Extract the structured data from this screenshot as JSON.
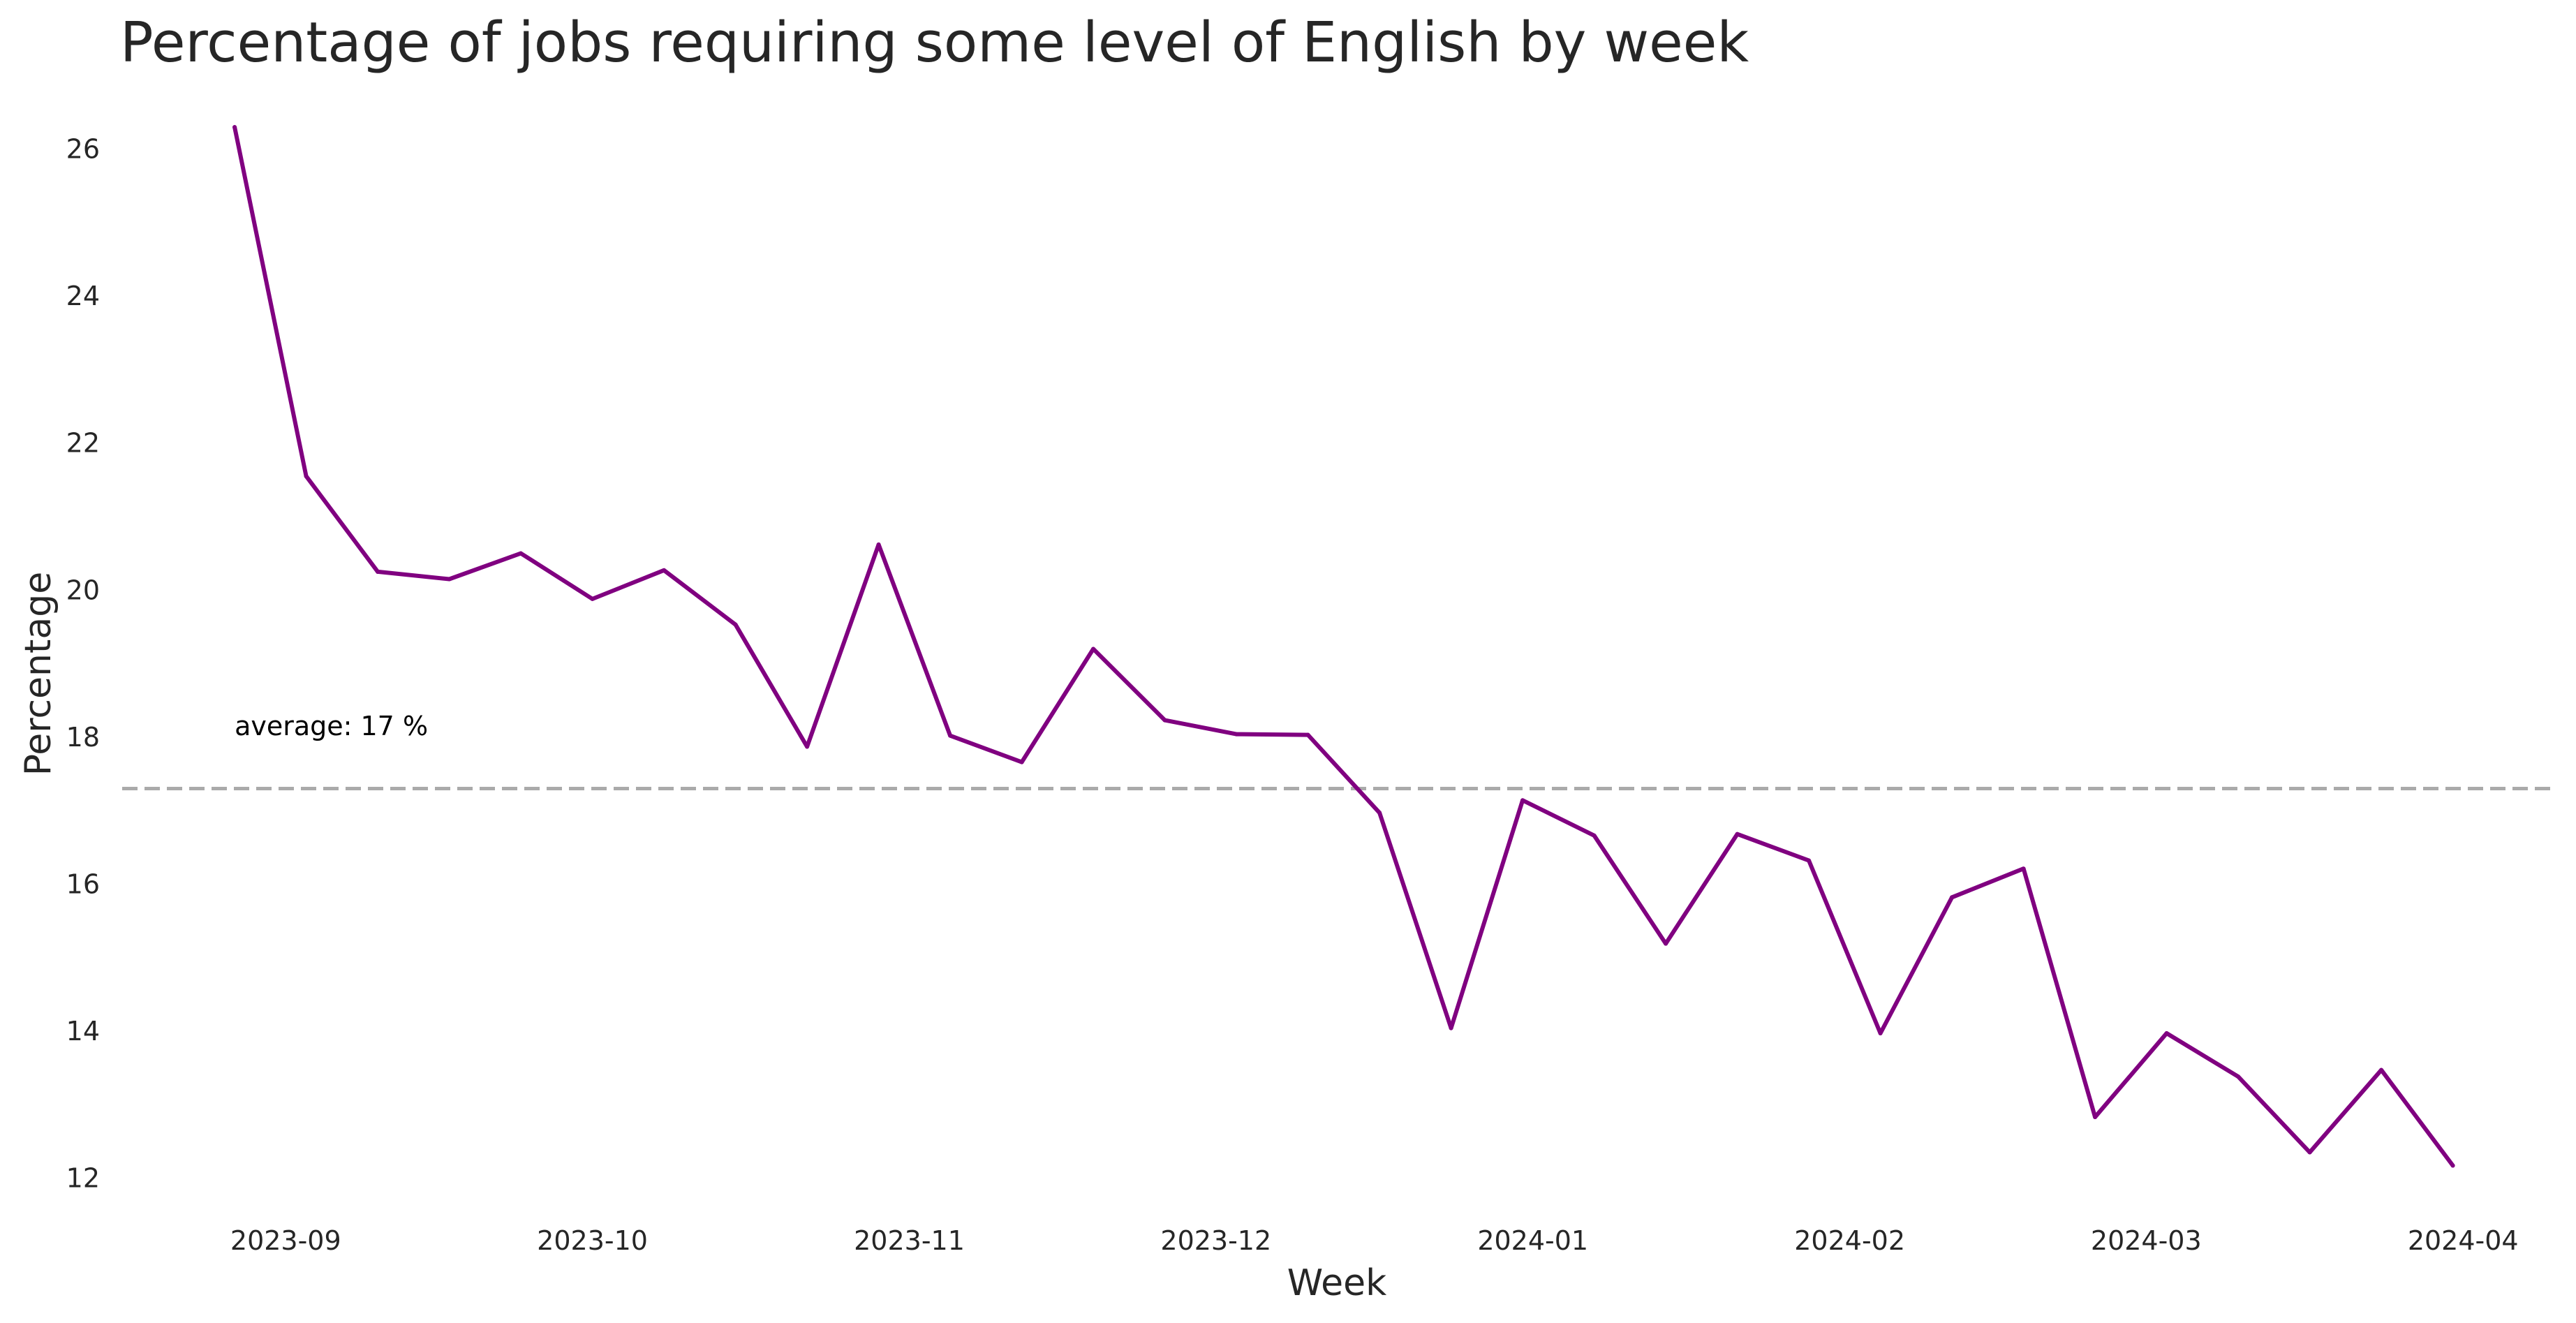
{
  "chart_data": {
    "type": "line",
    "title": "Percentage of jobs requiring some level of English by week",
    "xlabel": "Week",
    "ylabel": "Percentage",
    "x_tick_labels": [
      "2023-09",
      "2023-10",
      "2023-11",
      "2023-12",
      "2024-01",
      "2024-02",
      "2024-03",
      "2024-04"
    ],
    "x_ticks": [
      "2023-09-01",
      "2023-10-01",
      "2023-11-01",
      "2023-12-01",
      "2024-01-01",
      "2024-02-01",
      "2024-03-01",
      "2024-04-01"
    ],
    "y_ticks": [
      12,
      14,
      16,
      18,
      20,
      22,
      24,
      26
    ],
    "xlim": [
      "2023-08-16",
      "2024-04-10"
    ],
    "ylim": [
      11.5,
      26.7
    ],
    "grid": false,
    "series": [
      {
        "color": "#800080",
        "x": [
          "2023-08-27",
          "2023-09-03",
          "2023-09-10",
          "2023-09-17",
          "2023-09-24",
          "2023-10-01",
          "2023-10-08",
          "2023-10-15",
          "2023-10-22",
          "2023-10-29",
          "2023-11-05",
          "2023-11-12",
          "2023-11-19",
          "2023-11-26",
          "2023-12-03",
          "2023-12-10",
          "2023-12-17",
          "2023-12-24",
          "2023-12-31",
          "2024-01-07",
          "2024-01-14",
          "2024-01-21",
          "2024-01-28",
          "2024-02-04",
          "2024-02-11",
          "2024-02-18",
          "2024-02-25",
          "2024-03-03",
          "2024-03-10",
          "2024-03-17",
          "2024-03-24",
          "2024-03-31"
        ],
        "values": [
          26.3,
          21.55,
          20.25,
          20.15,
          20.5,
          19.88,
          20.27,
          19.53,
          17.87,
          20.62,
          18.02,
          17.66,
          19.2,
          18.23,
          18.04,
          18.03,
          16.97,
          14.04,
          17.14,
          16.66,
          15.19,
          16.68,
          16.32,
          13.97,
          15.82,
          16.21,
          12.83,
          13.97,
          13.38,
          12.35,
          13.47,
          12.17
        ]
      }
    ],
    "reference_line": {
      "value": 17.3,
      "label": "average: 17 %",
      "color": "#aaaaaa",
      "style": "dashed"
    }
  }
}
